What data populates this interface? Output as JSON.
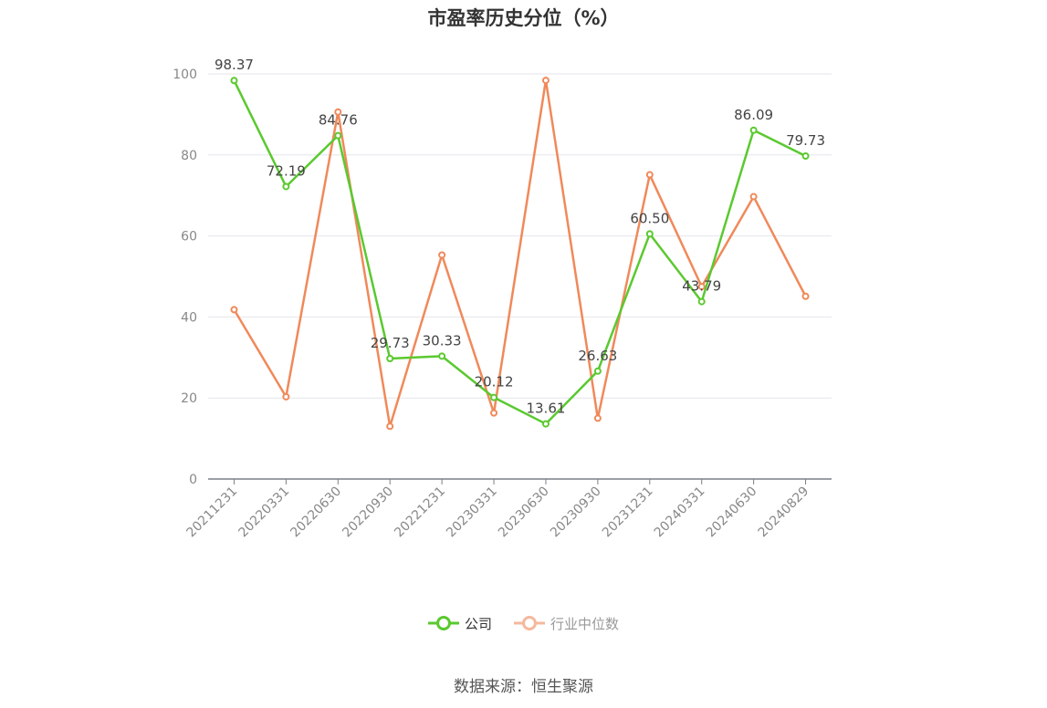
{
  "chart_data": {
    "type": "line",
    "title": "市盈率历史分位（%）",
    "categories": [
      "20211231",
      "20220331",
      "20220630",
      "20220930",
      "20221231",
      "20230331",
      "20230630",
      "20230930",
      "20231231",
      "20240331",
      "20240630",
      "20240829"
    ],
    "ylim": [
      0,
      100
    ],
    "yticks": [
      0,
      20,
      40,
      60,
      80,
      100
    ],
    "grid": true,
    "legend_position": "bottom",
    "series": [
      {
        "name": "公司",
        "color": "#5ac92f",
        "values": [
          98.37,
          72.19,
          84.76,
          29.73,
          30.33,
          20.12,
          13.61,
          26.63,
          60.5,
          43.79,
          86.09,
          79.73
        ],
        "labels": [
          "98.37",
          "72.19",
          "84.76",
          "29.73",
          "30.33",
          "20.12",
          "13.61",
          "26.63",
          "60.50",
          "43.79",
          "86.09",
          "79.73"
        ]
      },
      {
        "name": "行业中位数",
        "color": "#f0895a",
        "values": [
          41.8,
          20.3,
          90.6,
          13.0,
          55.3,
          16.3,
          98.4,
          15.0,
          75.1,
          47.5,
          69.7,
          45.1
        ]
      }
    ]
  },
  "source": "数据来源：恒生聚源"
}
